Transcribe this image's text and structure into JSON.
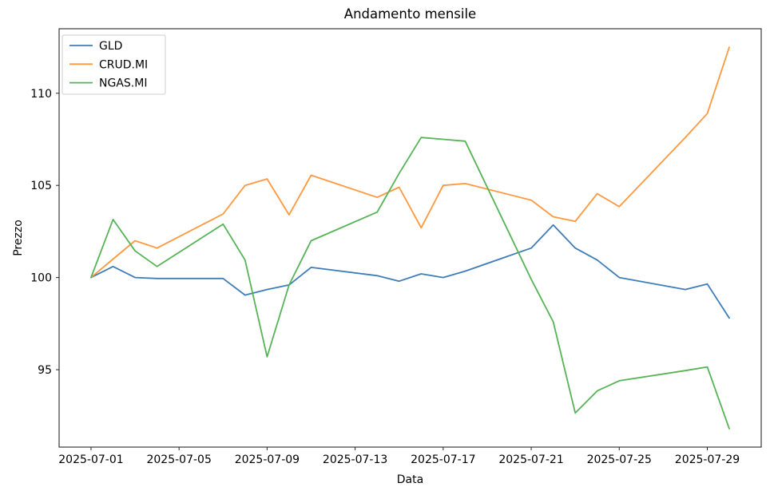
{
  "chart_data": {
    "type": "line",
    "title": "Andamento mensile",
    "xlabel": "Data",
    "ylabel": "Prezzo",
    "x": [
      "2025-07-01",
      "2025-07-02",
      "2025-07-03",
      "2025-07-04",
      "2025-07-07",
      "2025-07-08",
      "2025-07-09",
      "2025-07-10",
      "2025-07-11",
      "2025-07-14",
      "2025-07-15",
      "2025-07-16",
      "2025-07-17",
      "2025-07-18",
      "2025-07-21",
      "2025-07-22",
      "2025-07-23",
      "2025-07-24",
      "2025-07-25",
      "2025-07-28",
      "2025-07-29",
      "2025-07-30"
    ],
    "series": [
      {
        "name": "GLD",
        "color": "#3f7db8",
        "values": [
          100.0,
          100.6,
          100.0,
          99.95,
          99.95,
          99.05,
          99.35,
          99.6,
          100.55,
          100.1,
          99.8,
          100.2,
          100.0,
          100.35,
          101.6,
          102.85,
          101.6,
          100.95,
          100.0,
          99.35,
          99.65,
          97.8
        ]
      },
      {
        "name": "CRUD.MI",
        "color": "#ff983e",
        "values": [
          100.0,
          101.0,
          102.0,
          101.6,
          103.45,
          105.0,
          105.35,
          103.4,
          105.55,
          104.35,
          104.9,
          102.7,
          105.0,
          105.1,
          104.2,
          103.3,
          103.05,
          104.55,
          103.85,
          107.6,
          108.9,
          112.5
        ]
      },
      {
        "name": "NGAS.MI",
        "color": "#56b356",
        "values": [
          100.0,
          103.15,
          101.45,
          100.6,
          102.9,
          100.95,
          95.7,
          99.6,
          102.0,
          103.55,
          105.65,
          107.6,
          107.5,
          107.4,
          99.9,
          97.6,
          92.65,
          93.85,
          94.4,
          94.95,
          95.15,
          91.8
        ]
      }
    ],
    "xticks": [
      "2025-07-01",
      "2025-07-05",
      "2025-07-09",
      "2025-07-13",
      "2025-07-17",
      "2025-07-21",
      "2025-07-25",
      "2025-07-29"
    ],
    "yticks": [
      95,
      100,
      105,
      110
    ],
    "ylim": [
      90.8,
      113.5
    ],
    "legend": {
      "position": "upper-left"
    },
    "grid": false
  },
  "style": {
    "background": "#ffffff",
    "frame_color": "#262626",
    "text_color": "#000000",
    "legend_border": "#cccccc"
  }
}
